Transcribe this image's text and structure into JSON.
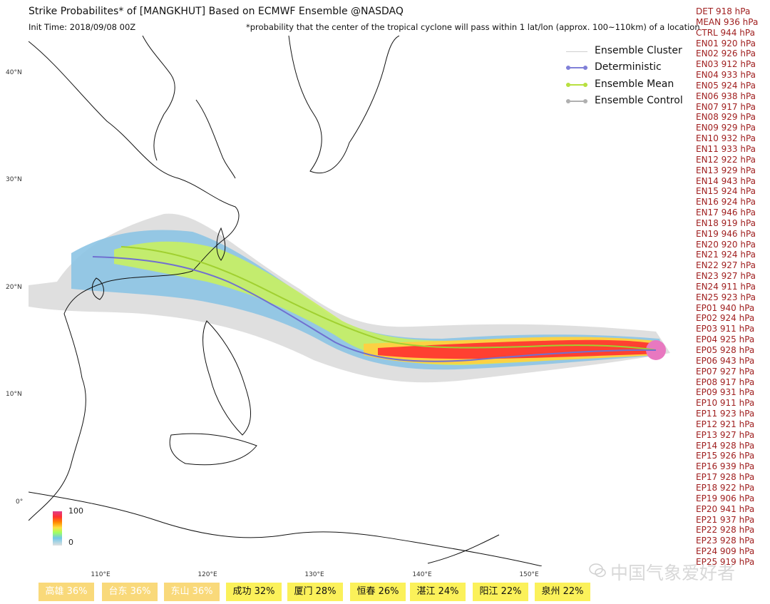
{
  "header": {
    "title": "Strike Probabilites* of [MANGKHUT] Based on ECMWF Ensemble  @NASDAQ",
    "init_time": "Init Time: 2018/09/08 00Z",
    "note": "*probability that the center of the tropical cyclone will pass within 1 lat/lon (approx. 100~110km) of a location"
  },
  "axes": {
    "lat_labels": [
      "40°N",
      "30°N",
      "20°N",
      "10°N",
      "0°"
    ],
    "lon_labels": [
      "110°E",
      "120°E",
      "130°E",
      "140°E",
      "150°E"
    ]
  },
  "legend": {
    "items": [
      {
        "label": "Ensemble Cluster",
        "color": "#d0d0d0"
      },
      {
        "label": "Deterministic",
        "color": "#8080d8"
      },
      {
        "label": "Ensemble Mean",
        "color": "#b8e040"
      },
      {
        "label": "Ensemble Control",
        "color": "#b0b0b0"
      }
    ]
  },
  "colorbar": {
    "max_label": "100",
    "min_label": "0"
  },
  "members": [
    "DET 918 hPa",
    "MEAN 936 hPa",
    "CTRL 944 hPa",
    "EN01 920 hPa",
    "EN02 926 hPa",
    "EN03 912 hPa",
    "EN04 933 hPa",
    "EN05 924 hPa",
    "EN06 938 hPa",
    "EN07 917 hPa",
    "EN08 929 hPa",
    "EN09 929 hPa",
    "EN10 932 hPa",
    "EN11 933 hPa",
    "EN12 922 hPa",
    "EN13 929 hPa",
    "EN14 943 hPa",
    "EN15 924 hPa",
    "EN16 924 hPa",
    "EN17 946 hPa",
    "EN18 919 hPa",
    "EN19 946 hPa",
    "EN20 920 hPa",
    "EN21 924 hPa",
    "EN22 927 hPa",
    "EN23 927 hPa",
    "EN24 911 hPa",
    "EN25 923 hPa",
    "EP01 940 hPa",
    "EP02 924 hPa",
    "EP03 911 hPa",
    "EP04 925 hPa",
    "EP05 928 hPa",
    "EP06 943 hPa",
    "EP07 927 hPa",
    "EP08 917 hPa",
    "EP09 931 hPa",
    "EP10 911 hPa",
    "EP11 923 hPa",
    "EP12 921 hPa",
    "EP13 927 hPa",
    "EP14 928 hPa",
    "EP15 926 hPa",
    "EP16 939 hPa",
    "EP17 928 hPa",
    "EP18 922 hPa",
    "EP19 906 hPa",
    "EP20 941 hPa",
    "EP21 937 hPa",
    "EP22 928 hPa",
    "EP23 928 hPa",
    "EP24 909 hPa",
    "EP25 919 hPa"
  ],
  "cities": [
    {
      "label": "高雄 36%",
      "color": "#f9d97a"
    },
    {
      "label": "台东 36%",
      "color": "#f9d97a"
    },
    {
      "label": "东山 36%",
      "color": "#f9d97a"
    },
    {
      "label": "成功 32%",
      "color": "#fbf15a"
    },
    {
      "label": "厦门 28%",
      "color": "#fbf15a"
    },
    {
      "label": "恒春 26%",
      "color": "#fbf15a"
    },
    {
      "label": "湛江 24%",
      "color": "#fbf15a"
    },
    {
      "label": "阳江 22%",
      "color": "#fbf15a"
    },
    {
      "label": "泉州 22%",
      "color": "#fbf15a"
    }
  ],
  "watermark": "中国气象爱好者"
}
